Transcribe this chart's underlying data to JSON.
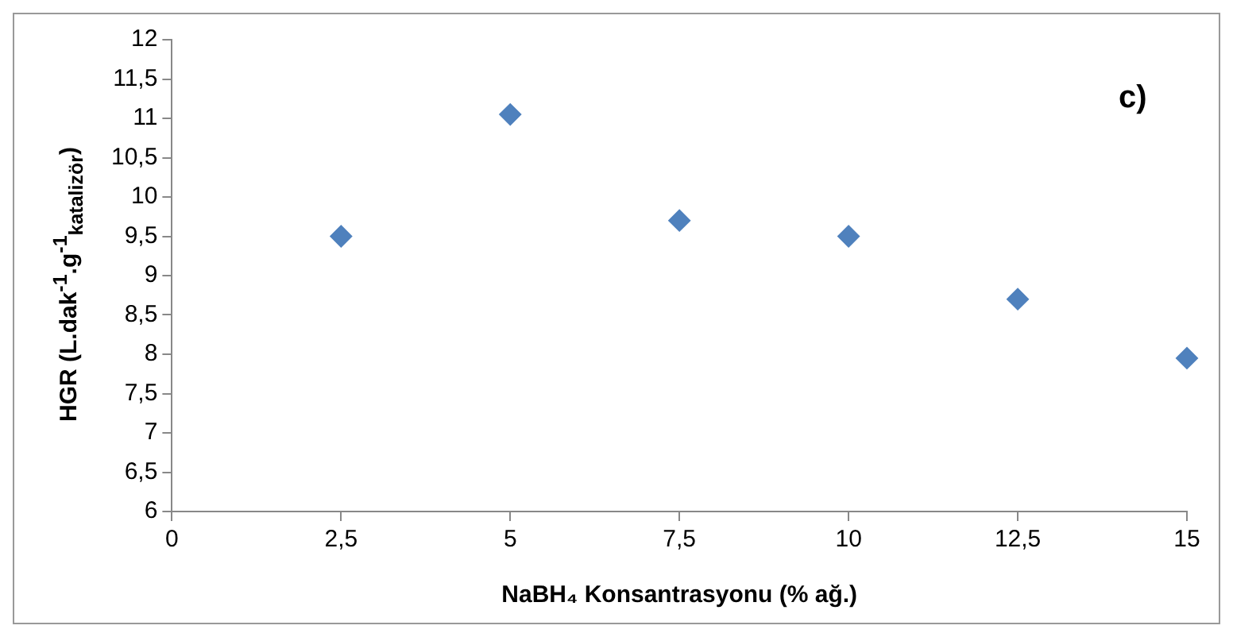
{
  "chart_data": {
    "type": "scatter",
    "xlabel": "NaBH₄ Konsantrasyonu (% ağ.)",
    "ylabel": "HGR (L.dak$^{-1}$.g$^{-1}$$_{katalizör}$)",
    "annotations": [
      "c)"
    ],
    "x": [
      2.5,
      5,
      7.5,
      10,
      12.5,
      15
    ],
    "series": [
      {
        "color": "#4f81bd",
        "values": [
          9.5,
          11.05,
          9.7,
          9.5,
          8.7,
          7.95
        ]
      }
    ],
    "xlim": [
      0,
      15
    ],
    "xticks": [
      0,
      {
        "value": 2.5,
        "label": "2,5"
      },
      5,
      {
        "value": 7.5,
        "label": "7,5"
      },
      10,
      {
        "value": 12.5,
        "label": "12,5"
      },
      15
    ],
    "ylim": [
      6,
      12
    ],
    "yticks": [
      6,
      {
        "value": 6.5,
        "label": "6,5"
      },
      7,
      {
        "value": 7.5,
        "label": "7,5"
      },
      8,
      {
        "value": 8.5,
        "label": "8,5"
      },
      9,
      {
        "value": 9.5,
        "label": "9,5"
      },
      10,
      {
        "value": 10.5,
        "label": "10,5"
      },
      11,
      {
        "value": 11.5,
        "label": "11,5"
      },
      12
    ],
    "grid": false,
    "legend": false,
    "marker": "diamond"
  }
}
